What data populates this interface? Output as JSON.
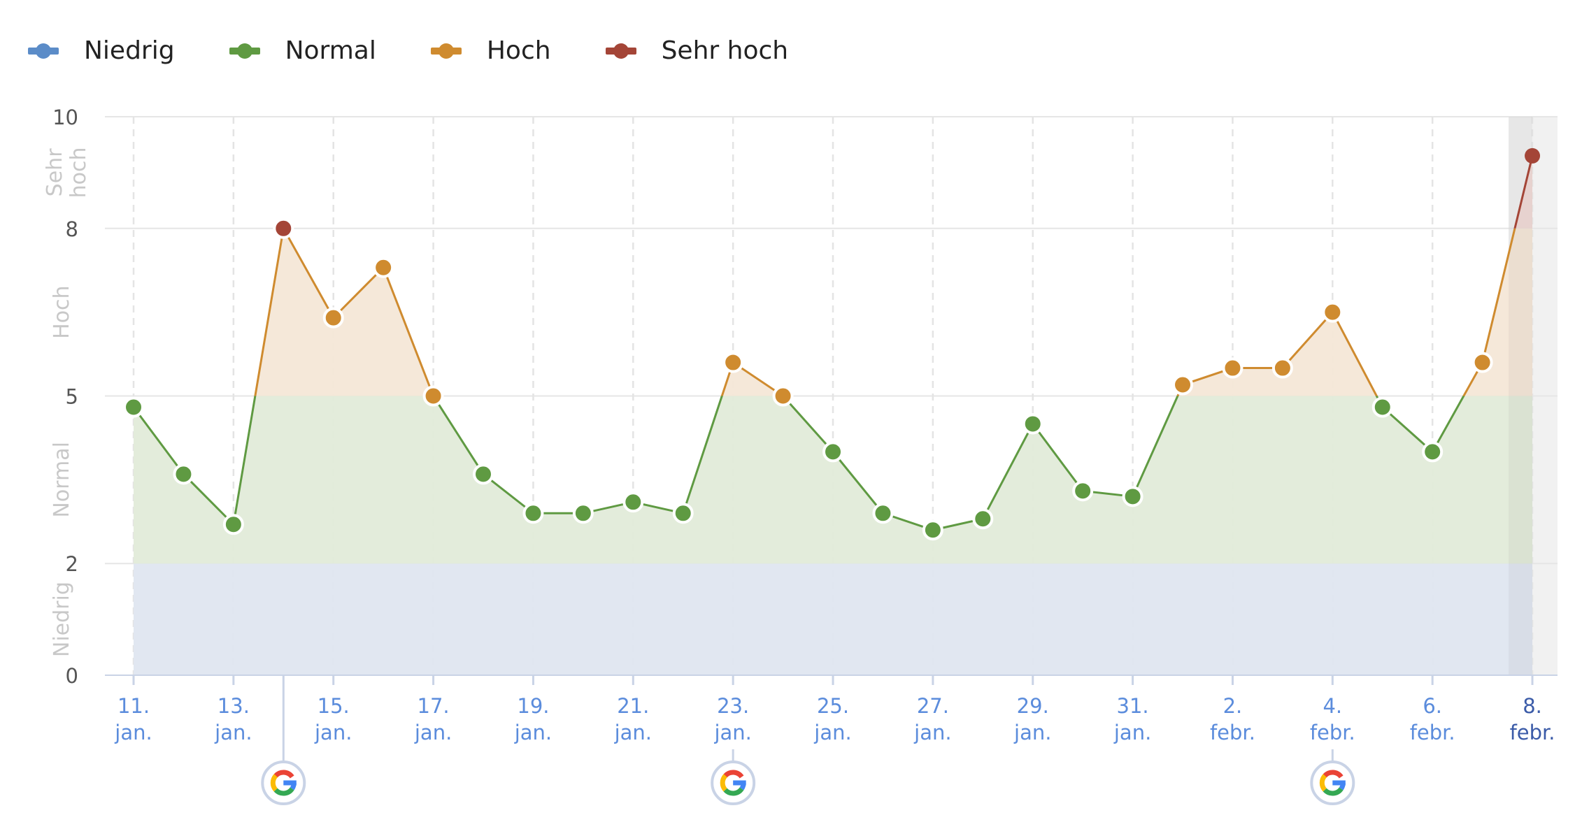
{
  "chart_data": {
    "type": "line",
    "legend": {
      "placement": "top-left",
      "items": [
        {
          "name": "Niedrig",
          "color": "#5b8cc8"
        },
        {
          "name": "Normal",
          "color": "#5f9a42"
        },
        {
          "name": "Hoch",
          "color": "#cf8b2f"
        },
        {
          "name": "Sehr hoch",
          "color": "#a44537"
        }
      ]
    },
    "ylim": [
      0,
      10
    ],
    "yticks": [
      0,
      2,
      5,
      8,
      10
    ],
    "zones": [
      {
        "label": "Niedrig",
        "from": 0,
        "to": 2,
        "color": "#5b8cc8",
        "fill": "#dfe6f0"
      },
      {
        "label": "Normal",
        "from": 2,
        "to": 5,
        "color": "#5f9a42",
        "fill": "#e1ebd9"
      },
      {
        "label": "Hoch",
        "from": 5,
        "to": 8,
        "color": "#cf8b2f",
        "fill": "#f4e7d7"
      },
      {
        "label": "Sehr hoch",
        "from": 8,
        "to": 10,
        "color": "#a44537",
        "fill": "#f0d9d6"
      }
    ],
    "x": [
      "11. jan.",
      "12. jan.",
      "13. jan.",
      "14. jan.",
      "15. jan.",
      "16. jan.",
      "17. jan.",
      "18. jan.",
      "19. jan.",
      "20. jan.",
      "21. jan.",
      "22. jan.",
      "23. jan.",
      "24. jan.",
      "25. jan.",
      "26. jan.",
      "27. jan.",
      "28. jan.",
      "29. jan.",
      "30. jan.",
      "31. jan.",
      "1. febr.",
      "2. febr.",
      "3. febr.",
      "4. febr.",
      "5. febr.",
      "6. febr.",
      "7. febr.",
      "8. febr."
    ],
    "values": [
      4.8,
      3.6,
      2.7,
      8.0,
      6.4,
      7.3,
      5.0,
      3.6,
      2.9,
      2.9,
      3.1,
      2.9,
      5.6,
      5.0,
      4.0,
      2.9,
      2.6,
      2.8,
      4.5,
      3.3,
      3.2,
      5.2,
      5.5,
      5.5,
      6.5,
      4.8,
      4.0,
      5.6,
      9.3
    ],
    "xtick_labels": [
      {
        "index": 0,
        "day": "11.",
        "month": "jan."
      },
      {
        "index": 2,
        "day": "13.",
        "month": "jan."
      },
      {
        "index": 4,
        "day": "15.",
        "month": "jan."
      },
      {
        "index": 6,
        "day": "17.",
        "month": "jan."
      },
      {
        "index": 8,
        "day": "19.",
        "month": "jan."
      },
      {
        "index": 10,
        "day": "21.",
        "month": "jan."
      },
      {
        "index": 12,
        "day": "23.",
        "month": "jan."
      },
      {
        "index": 14,
        "day": "25.",
        "month": "jan."
      },
      {
        "index": 16,
        "day": "27.",
        "month": "jan."
      },
      {
        "index": 18,
        "day": "29.",
        "month": "jan."
      },
      {
        "index": 20,
        "day": "31.",
        "month": "jan."
      },
      {
        "index": 22,
        "day": "2.",
        "month": "febr."
      },
      {
        "index": 24,
        "day": "4.",
        "month": "febr."
      },
      {
        "index": 26,
        "day": "6.",
        "month": "febr."
      },
      {
        "index": 28,
        "day": "8.",
        "month": "febr."
      }
    ],
    "highlighted_index": 28,
    "google_update_markers": [
      3,
      12,
      24
    ],
    "grid": true
  }
}
